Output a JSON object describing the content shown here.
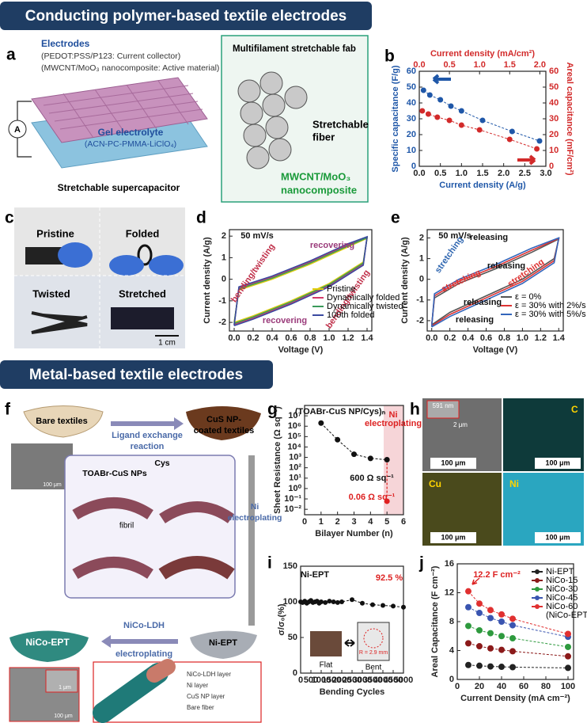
{
  "sections": [
    "Conducting polymer-based textile electrodes",
    "Metal-based textile electrodes"
  ],
  "panels": {
    "a": {
      "label": "a",
      "electrodes": "Electrodes",
      "collector": "(PEDOT:PSS/P123: Current collector)",
      "active": "(MWCNT/MoO₃ nanocomposite: Active material)",
      "gel": "Gel electrolyte",
      "gel_composition": "(ACN-PC-PMMA-LiClO₄)",
      "meter": "A",
      "caption": "Stretchable supercapacitor",
      "inset_title": "Multifilament stretchable fab",
      "fiber": [
        "Stretchable",
        "fiber"
      ],
      "coating": [
        "MWCNT/MoO₃",
        "nanocomposite"
      ]
    },
    "b": {
      "label": "b",
      "chart": {
        "type": "scatter",
        "xlabel": "Current density (A/g)",
        "x2label": "Current density (mA/cm²)",
        "ylabel": "Specific capacitance (F/g)",
        "y2label": "Areal capacitance (mF/cm²)",
        "xlim": [
          0,
          3
        ],
        "xticks": [
          {
            "value": 0,
            "label": "0.0"
          },
          0.5,
          {
            "value": 1,
            "label": "1.0"
          },
          1.5,
          {
            "value": 2,
            "label": "2.0"
          },
          2.5,
          {
            "value": 3,
            "label": "3.0"
          }
        ],
        "x2lim": [
          0,
          2.1
        ],
        "x2ticks": [
          {
            "value": 0,
            "label": "0.0"
          },
          0.5,
          {
            "value": 1,
            "label": "1.0"
          },
          1.5,
          {
            "value": 2,
            "label": "2.0"
          }
        ],
        "ylim": [
          0,
          60
        ],
        "yticks": [
          0,
          10,
          20,
          30,
          40,
          50,
          60
        ],
        "y2lim": [
          0,
          60
        ],
        "y2ticks": [
          0,
          10,
          20,
          30,
          40,
          50,
          60
        ],
        "series": [
          {
            "color": "#1f57a8",
            "style": "dotline",
            "x": [
              0.1,
              0.25,
              0.5,
              0.75,
              1.0,
              1.5,
              2.2,
              2.85
            ],
            "values": [
              48,
              45,
              42,
              38,
              35,
              29,
              22,
              16
            ]
          },
          {
            "color": "#d22a2a",
            "style": "dotline",
            "xaxis": "x2",
            "axis": "y2",
            "x": [
              0.05,
              0.15,
              0.3,
              0.5,
              0.7,
              1.0,
              1.5,
              1.95
            ],
            "values": [
              35,
              33,
              31,
              29,
              26,
              23,
              17,
              11
            ]
          }
        ]
      }
    },
    "c": {
      "label": "c",
      "photos": [
        "Pristine",
        "Folded",
        "Twisted",
        "Stretched"
      ],
      "scale_bar": "1 cm"
    },
    "d": {
      "label": "d",
      "chart": {
        "type": "line",
        "xlabel": "Voltage (V)",
        "ylabel": "Current density (A/g)",
        "xlim": [
          -0.05,
          1.45
        ],
        "xticks": [
          {
            "value": 0,
            "label": "0.0"
          },
          0.2,
          0.4,
          0.6,
          0.8,
          {
            "value": 1,
            "label": "1.0"
          },
          1.2,
          1.4
        ],
        "ylim": [
          -2.4,
          2.3
        ],
        "yticks": [
          -2,
          -1,
          0,
          1,
          2
        ],
        "legend": "lower right",
        "annotations": [
          {
            "text": "50 mV/s",
            "color": "#111"
          },
          {
            "text": "recovering",
            "color": "#9a3a7a"
          },
          {
            "text": "bending/twisting",
            "color": "#c0304a"
          },
          {
            "text": "bending/twisting",
            "color": "#c0304a"
          },
          {
            "text": "recovering",
            "color": "#9a3a7a"
          }
        ],
        "series": [
          {
            "name": "Pristine",
            "color": "#e0cc10",
            "style": "loop",
            "x": [
              0,
              0.05,
              0.4,
              0.8,
              1.2,
              1.4,
              1.36,
              1.0,
              0.6,
              0.2,
              0
            ],
            "values": [
              -2.0,
              -0.5,
              0.0,
              0.7,
              1.5,
              1.9,
              0.8,
              -0.2,
              -1.0,
              -1.7,
              -2.0
            ]
          },
          {
            "name": "Dynamically folded",
            "color": "#d43a6a",
            "style": "loop",
            "x": [
              0,
              0.05,
              0.4,
              0.8,
              1.2,
              1.4,
              1.36,
              1.0,
              0.6,
              0.2,
              0
            ],
            "values": [
              -2.1,
              -0.4,
              0.1,
              0.8,
              1.6,
              1.95,
              0.7,
              -0.3,
              -1.1,
              -1.8,
              -2.1
            ]
          },
          {
            "name": "Dynamically twisted",
            "color": "#3a9a5a",
            "style": "loop",
            "x": [
              0,
              0.05,
              0.4,
              0.8,
              1.2,
              1.4,
              1.36,
              1.0,
              0.6,
              0.2,
              0
            ],
            "values": [
              -2.05,
              -0.45,
              0.05,
              0.75,
              1.55,
              1.92,
              0.75,
              -0.25,
              -1.05,
              -1.75,
              -2.05
            ]
          },
          {
            "name": "100th folded",
            "color": "#3a4aa0",
            "style": "loop",
            "x": [
              0,
              0.05,
              0.4,
              0.8,
              1.2,
              1.4,
              1.36,
              1.0,
              0.6,
              0.2,
              0
            ],
            "values": [
              -2.15,
              -0.35,
              0.15,
              0.85,
              1.65,
              1.97,
              0.65,
              -0.35,
              -1.15,
              -1.85,
              -2.15
            ]
          }
        ]
      }
    },
    "e": {
      "label": "e",
      "chart": {
        "type": "line",
        "xlabel": "Voltage (V)",
        "ylabel": "Current density (A/g)",
        "xlim": [
          -0.05,
          1.45
        ],
        "xticks": [
          {
            "value": 0,
            "label": "0.0"
          },
          0.2,
          0.4,
          0.6,
          0.8,
          {
            "value": 1,
            "label": "1.0"
          },
          1.2,
          1.4
        ],
        "ylim": [
          -2.5,
          2.4
        ],
        "yticks": [
          -2,
          -1,
          0,
          1,
          2
        ],
        "legend": "lower right",
        "annotations": [
          {
            "text": "50 mV/s",
            "color": "#111"
          },
          {
            "text": "stretching",
            "color": "#2f66b0"
          },
          {
            "text": "releasing",
            "color": "#111"
          },
          {
            "text": "releasing",
            "color": "#111"
          },
          {
            "text": "stretching",
            "color": "#d33"
          },
          {
            "text": "stretching",
            "color": "#d33"
          },
          {
            "text": "releasing",
            "color": "#111"
          },
          {
            "text": "releasing",
            "color": "#111"
          }
        ],
        "series": [
          {
            "name": "ε = 0%",
            "color": "#555",
            "style": "loop",
            "x": [
              0,
              0.03,
              0.3,
              0.7,
              1.1,
              1.4,
              1.35,
              1.0,
              0.6,
              0.2,
              0
            ],
            "values": [
              -2.2,
              -0.9,
              -0.2,
              0.5,
              1.3,
              1.95,
              1.0,
              0.0,
              -0.8,
              -1.6,
              -2.2
            ]
          },
          {
            "name": "ε = 30% with 2%/s",
            "color": "#d33",
            "style": "loop",
            "x": [
              0,
              0.03,
              0.3,
              0.7,
              1.1,
              1.4,
              1.35,
              1.0,
              0.6,
              0.2,
              0
            ],
            "values": [
              -2.25,
              -0.8,
              -0.1,
              0.6,
              1.4,
              1.97,
              0.9,
              -0.1,
              -0.9,
              -1.7,
              -2.25
            ]
          },
          {
            "name": "ε = 30% with 5%/s",
            "color": "#3366bb",
            "style": "loop",
            "x": [
              0,
              0.03,
              0.3,
              0.7,
              1.1,
              1.4,
              1.35,
              1.0,
              0.6,
              0.2,
              0
            ],
            "values": [
              -2.3,
              -0.7,
              0.0,
              0.7,
              1.5,
              2.0,
              0.8,
              -0.2,
              -1.0,
              -1.8,
              -2.3
            ]
          }
        ]
      }
    },
    "f": {
      "label": "f",
      "bare": "Bare textiles",
      "ligand": [
        "Ligand exchange",
        "reaction"
      ],
      "cus": [
        "CuS NP-",
        "coated textiles"
      ],
      "np": "TOABr-CuS NPs",
      "cys": "Cys",
      "fibril": "fibril",
      "ni_step": [
        "Ni",
        "electroplating"
      ],
      "ldh_step": [
        "NiCo-LDH",
        "electroplating"
      ],
      "ni_ept": "Ni-EPT",
      "nico_ept": "NiCo-EPT",
      "sem_scale": [
        "100 μm",
        "1 μm",
        "100 μm"
      ],
      "layers": [
        "NiCo-LDH layer",
        "Ni layer",
        "CuS NP layer",
        "Bare fiber"
      ]
    },
    "g": {
      "label": "g",
      "chart": {
        "type": "scatter",
        "xlabel": "Bilayer Number (n)",
        "ylabel": "Sheet Resistance (Ω sq⁻¹)",
        "ylog": true,
        "xlim": [
          0,
          6
        ],
        "xticks": [
          0,
          1,
          2,
          3,
          4,
          5,
          6
        ],
        "ylim": [
          0.003,
          100000000
        ],
        "yticks": [
          {
            "value": 0.01,
            "label": "10⁻²"
          },
          {
            "value": 0.1,
            "label": "10⁻¹"
          },
          {
            "value": 1,
            "label": "10⁰"
          },
          {
            "value": 10,
            "label": "10¹"
          },
          {
            "value": 100,
            "label": "10²"
          },
          {
            "value": 1000,
            "label": "10³"
          },
          {
            "value": 10000,
            "label": "10⁴"
          },
          {
            "value": 100000,
            "label": "10⁵"
          },
          {
            "value": 1000000,
            "label": "10⁶"
          },
          {
            "value": 10000000,
            "label": "10⁷"
          }
        ],
        "annotations": [
          {
            "text": "(TOABr-CuS NP/Cys)ₙ",
            "color": "#111"
          },
          {
            "text": "Ni",
            "color": "#d22"
          },
          {
            "text": "electroplating",
            "color": "#d22"
          },
          {
            "text": "600 Ω sq⁻¹",
            "color": "#111"
          },
          {
            "text": "0.06 Ω sq⁻¹",
            "color": "#d22"
          }
        ],
        "series": [
          {
            "color": "#111",
            "style": "dotline",
            "x": [
              1,
              2,
              3,
              4,
              5
            ],
            "values": [
              2000000,
              50000,
              2000,
              800,
              600
            ]
          },
          {
            "color": "#e02020",
            "style": "dotline",
            "x": [
              5
            ],
            "values": [
              0.06
            ]
          }
        ]
      }
    },
    "h": {
      "label": "h",
      "inset_size": "591 nm",
      "inset_scale": "2 μm",
      "maps": [
        "C",
        "Cu",
        "Ni"
      ],
      "scale": [
        "100 μm",
        "100 μm",
        "100 μm",
        "100 μm"
      ]
    },
    "i": {
      "label": "i",
      "inset": [
        "Flat",
        "Bent",
        "R = 2.9 mm"
      ],
      "chart": {
        "type": "scatter",
        "xlabel": "Bending Cycles",
        "ylabel": "σ/σ₀(%)",
        "xlim": [
          0,
          5000
        ],
        "xticks": [
          0,
          500,
          1000,
          1500,
          2000,
          2500,
          3000,
          3500,
          4000,
          4500,
          5000
        ],
        "ylim": [
          0,
          150
        ],
        "yticks": [
          0,
          50,
          100,
          150
        ],
        "annotations": [
          {
            "text": "Ni-EPT",
            "color": "#111"
          },
          {
            "text": "92.5 %",
            "color": "#d22"
          }
        ],
        "series": [
          {
            "color": "#111",
            "style": "dotline",
            "x": [
              0,
              100,
              200,
              300,
              400,
              500,
              600,
              700,
              800,
              900,
              1000,
              1200,
              1400,
              1600,
              1800,
              2000,
              2500,
              3000,
              3500,
              4000,
              4500,
              5000
            ],
            "values": [
              100,
              99,
              101,
              98,
              100,
              102,
              99,
              100,
              101,
              98,
              100,
              99,
              101,
              100,
              99,
              100,
              103,
              98,
              96,
              95,
              94,
              92.5
            ]
          }
        ]
      }
    },
    "j": {
      "label": "j",
      "chart": {
        "type": "line",
        "xlabel": "Current Density (mA cm⁻²)",
        "ylabel": "Areal Capacitance (F cm⁻²)",
        "xlim": [
          0,
          105
        ],
        "xticks": [
          0,
          20,
          40,
          60,
          80,
          100
        ],
        "ylim": [
          0,
          16
        ],
        "yticks": [
          0,
          4,
          8,
          12,
          16
        ],
        "legend": "upper right",
        "legend_note": "(NiCo-EPT)",
        "annotations": [
          {
            "text": "12.2 F cm⁻²",
            "color": "#d22"
          }
        ],
        "series": [
          {
            "name": "Ni-EPT",
            "color": "#222",
            "style": "dotline",
            "x": [
              10,
              20,
              30,
              40,
              50,
              100
            ],
            "values": [
              2.0,
              1.9,
              1.8,
              1.75,
              1.7,
              1.6
            ]
          },
          {
            "name": "NiCo-15",
            "color": "#8b1a1a",
            "style": "dotline",
            "x": [
              10,
              20,
              30,
              40,
              50,
              100
            ],
            "values": [
              5.0,
              4.6,
              4.3,
              4.1,
              3.9,
              3.2
            ]
          },
          {
            "name": "NiCo-30",
            "color": "#2e9a3e",
            "style": "dotline",
            "x": [
              10,
              20,
              30,
              40,
              50,
              100
            ],
            "values": [
              7.4,
              6.8,
              6.4,
              6.0,
              5.7,
              4.5
            ]
          },
          {
            "name": "NiCo-45",
            "color": "#3a55b0",
            "style": "dotline",
            "x": [
              10,
              20,
              30,
              40,
              50,
              100
            ],
            "values": [
              10.0,
              9.2,
              8.5,
              8.0,
              7.5,
              5.9
            ]
          },
          {
            "name": "NiCo-60",
            "color": "#e03030",
            "style": "dotline",
            "x": [
              10,
              20,
              30,
              40,
              50,
              100
            ],
            "values": [
              12.2,
              10.5,
              9.6,
              9.0,
              8.4,
              6.3
            ]
          }
        ]
      }
    }
  }
}
